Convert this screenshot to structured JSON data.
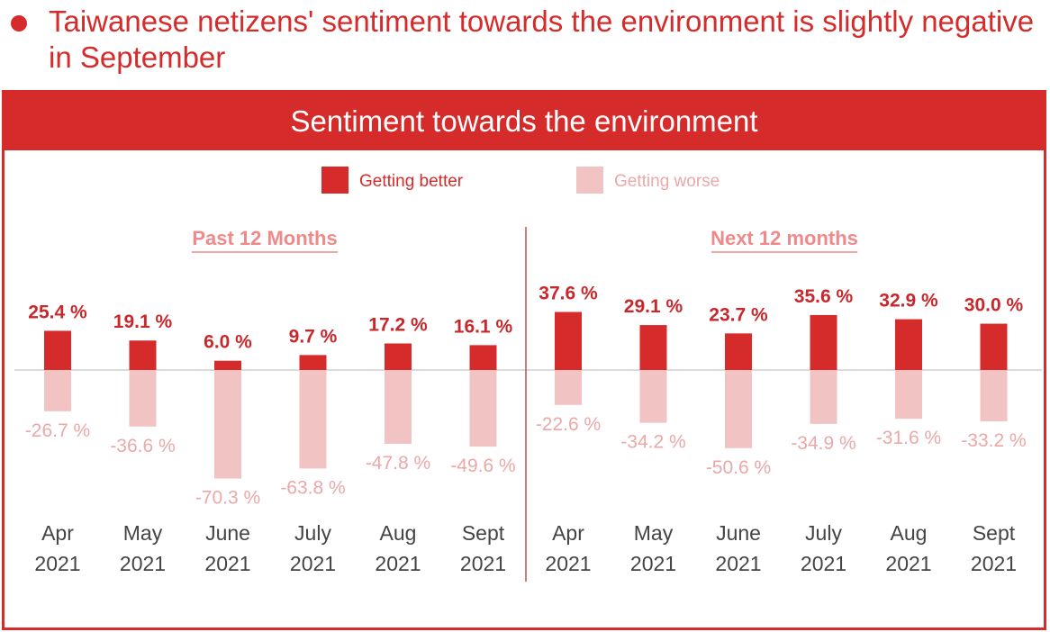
{
  "header": {
    "headline": "Taiwanese netizens' sentiment towards the environment is slightly negative in September"
  },
  "panel": {
    "title": "Sentiment towards the environment"
  },
  "colors": {
    "accent": "#d52b2b",
    "better": "#d52b2b",
    "worse": "#f2c3c3",
    "worse_label": "#eba8a8",
    "section_title": "#f08a8a"
  },
  "chart_data": {
    "type": "bar",
    "legend": [
      {
        "name": "Getting better"
      },
      {
        "name": "Getting worse"
      }
    ],
    "groups": [
      {
        "title": "Past 12 Months",
        "categories": [
          {
            "month": "Apr",
            "year": "2021"
          },
          {
            "month": "May",
            "year": "2021"
          },
          {
            "month": "June",
            "year": "2021"
          },
          {
            "month": "July",
            "year": "2021"
          },
          {
            "month": "Aug",
            "year": "2021"
          },
          {
            "month": "Sept",
            "year": "2021"
          }
        ],
        "series": [
          {
            "name": "Getting better",
            "values": [
              25.4,
              19.1,
              6.0,
              9.7,
              17.2,
              16.1
            ],
            "labels": [
              "25.4 %",
              "19.1 %",
              "6.0 %",
              "9.7 %",
              "17.2 %",
              "16.1 %"
            ]
          },
          {
            "name": "Getting worse",
            "values": [
              -26.7,
              -36.6,
              -70.3,
              -63.8,
              -47.8,
              -49.6
            ],
            "labels": [
              "-26.7 %",
              "-36.6 %",
              "-70.3 %",
              "-63.8 %",
              "-47.8 %",
              "-49.6 %"
            ]
          }
        ]
      },
      {
        "title": "Next 12 months",
        "categories": [
          {
            "month": "Apr",
            "year": "2021"
          },
          {
            "month": "May",
            "year": "2021"
          },
          {
            "month": "June",
            "year": "2021"
          },
          {
            "month": "July",
            "year": "2021"
          },
          {
            "month": "Aug",
            "year": "2021"
          },
          {
            "month": "Sept",
            "year": "2021"
          }
        ],
        "series": [
          {
            "name": "Getting better",
            "values": [
              37.6,
              29.1,
              23.7,
              35.6,
              32.9,
              30.0
            ],
            "labels": [
              "37.6 %",
              "29.1 %",
              "23.7 %",
              "35.6 %",
              "32.9 %",
              "30.0 %"
            ]
          },
          {
            "name": "Getting worse",
            "values": [
              -22.6,
              -34.2,
              -50.6,
              -34.9,
              -31.6,
              -33.2
            ],
            "labels": [
              "-22.6 %",
              "-34.2 %",
              "-50.6 %",
              "-34.9 %",
              "-31.6 %",
              "-33.2 %"
            ]
          }
        ]
      }
    ],
    "ylim": [
      -70.3,
      37.6
    ],
    "grid": false
  }
}
